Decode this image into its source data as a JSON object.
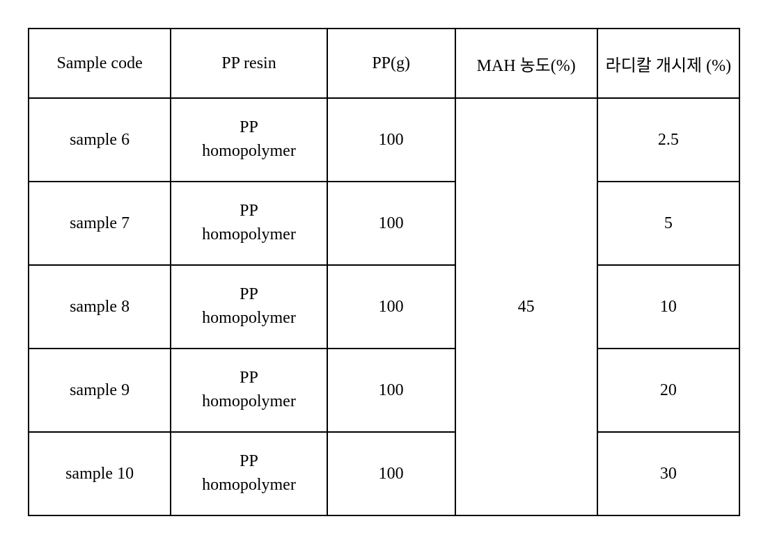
{
  "table": {
    "columns": [
      "Sample code",
      "PP resin",
      "PP(g)",
      "MAH 농도(%)",
      "라디칼 개시제 (%)"
    ],
    "column_widths_pct": [
      20,
      22,
      18,
      20,
      20
    ],
    "mah_merged_value": "45",
    "rows": [
      {
        "sample_code": "sample 6",
        "pp_resin_line1": "PP",
        "pp_resin_line2": "homopolymer",
        "pp_g": "100",
        "radical": "2.5"
      },
      {
        "sample_code": "sample 7",
        "pp_resin_line1": "PP",
        "pp_resin_line2": "homopolymer",
        "pp_g": "100",
        "radical": "5"
      },
      {
        "sample_code": "sample 8",
        "pp_resin_line1": "PP",
        "pp_resin_line2": "homopolymer",
        "pp_g": "100",
        "radical": "10"
      },
      {
        "sample_code": "sample 9",
        "pp_resin_line1": "PP",
        "pp_resin_line2": "homopolymer",
        "pp_g": "100",
        "radical": "20"
      },
      {
        "sample_code": "sample 10",
        "pp_resin_line1": "PP",
        "pp_resin_line2": "homopolymer",
        "pp_g": "100",
        "radical": "30"
      }
    ],
    "styling": {
      "border_color": "#000000",
      "border_width": 2,
      "background_color": "#ffffff",
      "text_color": "#000000",
      "header_fontsize": 24,
      "cell_fontsize": 24,
      "font_family": "Times New Roman, serif",
      "header_row_height": 100,
      "data_row_height": 120
    }
  }
}
